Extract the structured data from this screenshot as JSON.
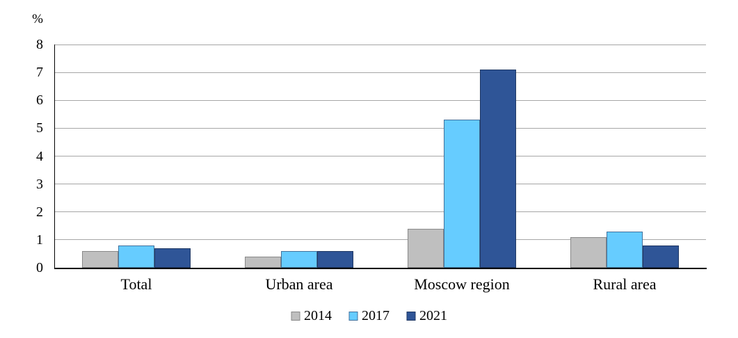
{
  "chart_data": {
    "type": "bar",
    "title": "",
    "ylabel": "%",
    "xlabel": "",
    "categories": [
      "Total",
      "Urban area",
      "Moscow region",
      "Rural area"
    ],
    "series": [
      {
        "name": "2014",
        "color": "#BFBFBF",
        "border_color": "#898989",
        "values": [
          0.6,
          0.4,
          1.4,
          1.1
        ]
      },
      {
        "name": "2017",
        "color": "#66CCFF",
        "border_color": "#41719C",
        "values": [
          0.8,
          0.6,
          5.3,
          1.3
        ]
      },
      {
        "name": "2021",
        "color": "#2F5597",
        "border_color": "#1F3864",
        "values": [
          0.7,
          0.6,
          7.1,
          0.8
        ]
      }
    ],
    "ylim": [
      0,
      8
    ],
    "yticks": [
      0,
      1,
      2,
      3,
      4,
      5,
      6,
      7,
      8
    ],
    "grid": true,
    "gridline_color": "#A6A6A6",
    "axis_color": "#000000",
    "legend_position": "bottom"
  }
}
